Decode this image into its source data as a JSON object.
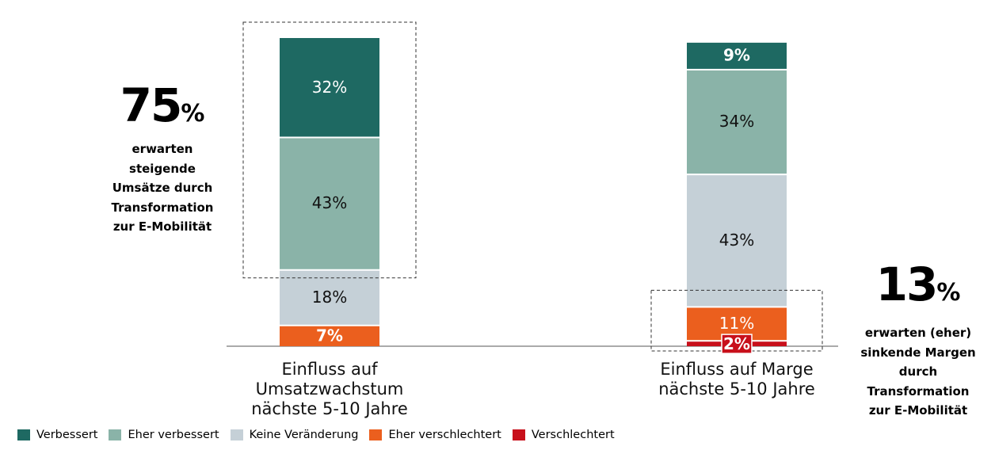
{
  "chart_data": {
    "type": "bar",
    "stacked": true,
    "categories": [
      {
        "lines": [
          "Einfluss auf",
          "Umsatzwachstum",
          "nächste 5-10 Jahre"
        ]
      },
      {
        "lines": [
          "Einfluss auf Marge",
          "nächste 5-10 Jahre"
        ]
      }
    ],
    "series": [
      {
        "name": "Verbessert",
        "color": "#1e6962",
        "values": [
          32,
          9
        ],
        "labels": [
          "32%",
          "9%"
        ]
      },
      {
        "name": "Eher verbessert",
        "color": "#8ab3a8",
        "values": [
          43,
          34
        ],
        "labels": [
          "43%",
          "34%"
        ]
      },
      {
        "name": "Keine Veränderung",
        "color": "#c5d0d7",
        "values": [
          18,
          43
        ],
        "labels": [
          "18%",
          "43%"
        ]
      },
      {
        "name": "Eher verschlechtert",
        "color": "#eb5f1e",
        "values": [
          7,
          11
        ],
        "labels": [
          "7%",
          "11%"
        ]
      },
      {
        "name": "Verschlechtert",
        "color": "#c8101b",
        "values": [
          0,
          2
        ],
        "labels": [
          "",
          "2%"
        ]
      }
    ],
    "ylim": [
      0,
      100
    ],
    "legend_position": "bottom-left"
  },
  "callouts": {
    "left": {
      "number": "75",
      "percent": "%",
      "lines": [
        "erwarten",
        "steigende",
        "Umsätze durch",
        "Transformation",
        "zur E-Mobilität"
      ]
    },
    "right": {
      "number": "13",
      "percent": "%",
      "lines": [
        "erwarten (eher)",
        "sinkende Margen",
        "durch",
        "Transformation",
        "zur E-Mobilität"
      ]
    }
  }
}
